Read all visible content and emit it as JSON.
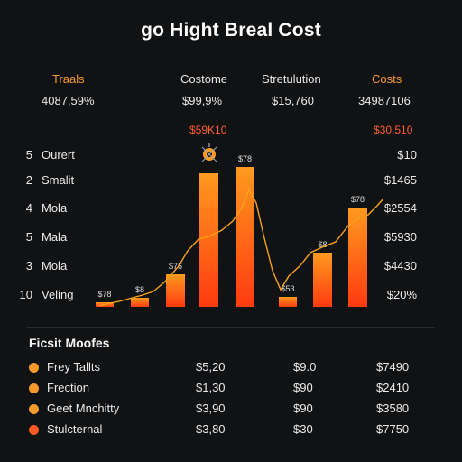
{
  "title": "go Hight Breal Cost",
  "header": {
    "columns": [
      {
        "label": "Traals",
        "value": "4087,59%",
        "color": "#f39a2b"
      },
      {
        "label": "Costome",
        "value": "$99,9%",
        "color": "#e6e6e6"
      },
      {
        "label": "Stretulution",
        "value": "$15,760",
        "color": "#e6e6e6"
      },
      {
        "label": "Costs",
        "value": "34987106",
        "color": "#f39a2b"
      }
    ],
    "marker_left": "$59K10",
    "marker_right": "$30,510"
  },
  "rows": [
    {
      "num": "5",
      "label": "Ourert",
      "right": "$10"
    },
    {
      "num": "2",
      "label": "Smalit",
      "right": "$1465"
    },
    {
      "num": "4",
      "label": "Mola",
      "right": "$2554"
    },
    {
      "num": "5",
      "label": "Mala",
      "right": "$5930"
    },
    {
      "num": "3",
      "label": "Mola",
      "right": "$4430"
    },
    {
      "num": "10",
      "label": "Veling",
      "right": "$20%"
    }
  ],
  "chart_data": {
    "type": "bar",
    "bars": [
      {
        "value": 5,
        "label": "$78"
      },
      {
        "value": 10,
        "label": "$8"
      },
      {
        "value": 36,
        "label": "$76"
      },
      {
        "value": 148,
        "label": ""
      },
      {
        "value": 155,
        "label": "$78"
      },
      {
        "value": 11,
        "label": "$53"
      },
      {
        "value": 60,
        "label": "$8"
      },
      {
        "value": 110,
        "label": "$78"
      }
    ],
    "colors": {
      "top": "#ff9a1f",
      "bottom": "#ff3a10",
      "line": "#f7a21b"
    }
  },
  "legend": {
    "title": "Ficsit Moofes",
    "items": [
      {
        "name": "Frey Tallts",
        "c1": "$5,20",
        "c2": "$9.0",
        "c3": "$7490",
        "color": "#f39a2b"
      },
      {
        "name": "Frection",
        "c1": "$1,30",
        "c2": "$90",
        "c3": "$2410",
        "color": "#f39a2b"
      },
      {
        "name": "Geet Mnchitty",
        "c1": "$3,90",
        "c2": "$90",
        "c3": "$3580",
        "color": "#f39a2b"
      },
      {
        "name": "Stulcternal",
        "c1": "$3,80",
        "c2": "$30",
        "c3": "$7750",
        "color": "#ff5a23"
      }
    ]
  }
}
